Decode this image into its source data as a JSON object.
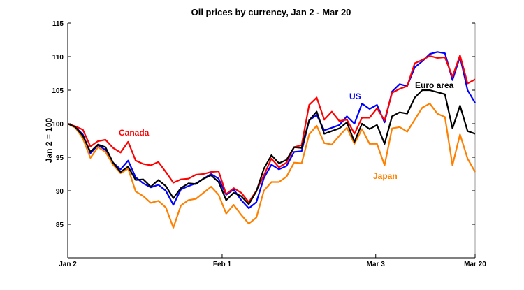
{
  "chart_data": {
    "type": "line",
    "title": "Oil prices by currency, Jan 2 - Mar 20",
    "xlabel": "",
    "ylabel": "Jan 2 = 100",
    "ylim": [
      80,
      115
    ],
    "yticks": [
      85,
      90,
      95,
      100,
      105,
      110,
      115
    ],
    "xtick_labels": [
      "Jan 2",
      "Feb 1",
      "Mar 3",
      "Mar 20"
    ],
    "grid": false,
    "series": [
      {
        "name": "Canada",
        "color": "#ff0000",
        "values": [
          100.0,
          99.6,
          99.1,
          96.6,
          97.4,
          97.6,
          96.4,
          95.7,
          97.3,
          94.5,
          94.0,
          93.8,
          94.3,
          92.8,
          91.2,
          91.7,
          91.8,
          92.4,
          92.5,
          92.8,
          92.9,
          89.5,
          90.4,
          89.7,
          88.3,
          90.0,
          92.3,
          94.8,
          93.5,
          94.2,
          96.5,
          96.8,
          102.8,
          103.9,
          100.6,
          101.8,
          100.4,
          100.6,
          98.5,
          100.9,
          100.9,
          102.3,
          100.5,
          104.6,
          105.2,
          105.6,
          109.0,
          109.5,
          110.1,
          109.8,
          109.9,
          107.0,
          110.2,
          106.0,
          106.6
        ]
      },
      {
        "name": "US",
        "color": "#0000ff",
        "values": [
          100.0,
          99.5,
          98.4,
          95.6,
          96.8,
          96.1,
          94.2,
          93.2,
          94.5,
          92.0,
          91.1,
          90.5,
          90.9,
          90.0,
          87.9,
          90.2,
          90.7,
          91.1,
          91.8,
          92.5,
          91.8,
          89.4,
          90.2,
          88.6,
          87.4,
          88.3,
          91.9,
          93.9,
          93.2,
          93.7,
          95.8,
          95.9,
          100.5,
          101.3,
          99.0,
          99.4,
          99.8,
          101.1,
          100.0,
          103.0,
          102.2,
          102.8,
          100.2,
          104.8,
          105.9,
          105.6,
          108.4,
          109.3,
          110.4,
          110.7,
          110.5,
          106.5,
          110.0,
          105.0,
          103.1
        ]
      },
      {
        "name": "Euro area",
        "color": "#000000",
        "values": [
          100.0,
          99.5,
          98.2,
          95.8,
          96.9,
          96.5,
          94.2,
          92.8,
          93.6,
          91.6,
          91.7,
          90.6,
          91.6,
          90.7,
          88.9,
          90.4,
          91.1,
          91.0,
          91.8,
          92.3,
          91.3,
          88.6,
          89.7,
          89.2,
          88.0,
          89.9,
          93.3,
          95.3,
          94.1,
          94.6,
          96.5,
          96.4,
          100.5,
          101.8,
          98.5,
          98.9,
          99.3,
          100.2,
          97.3,
          100.0,
          99.2,
          99.8,
          97.0,
          101.1,
          101.7,
          101.5,
          103.9,
          105.0,
          105.0,
          104.7,
          104.4,
          99.3,
          102.7,
          98.9,
          98.5
        ]
      },
      {
        "name": "Japan",
        "color": "#ff8000",
        "values": [
          100.0,
          99.4,
          97.8,
          94.9,
          96.5,
          95.8,
          93.9,
          92.6,
          93.3,
          89.9,
          89.2,
          88.2,
          88.5,
          87.5,
          84.5,
          87.8,
          88.6,
          88.8,
          89.7,
          90.6,
          89.4,
          86.6,
          87.9,
          86.4,
          85.1,
          86.0,
          90.0,
          91.3,
          91.3,
          92.1,
          94.2,
          94.1,
          98.4,
          99.7,
          97.1,
          96.9,
          98.2,
          99.4,
          97.0,
          99.2,
          97.0,
          97.0,
          93.8,
          99.3,
          99.5,
          98.8,
          100.6,
          102.4,
          103.0,
          101.5,
          101.0,
          93.8,
          98.4,
          94.8,
          92.8
        ]
      }
    ]
  }
}
